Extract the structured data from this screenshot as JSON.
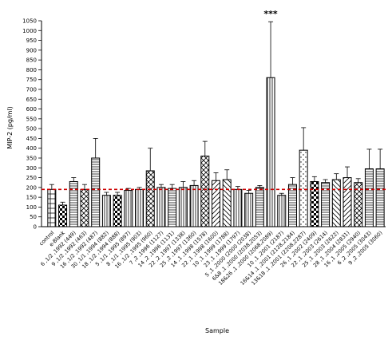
{
  "chart_data": {
    "type": "bar",
    "ylabel": "MIP-2 (pg/ml)",
    "xlabel": "Sample",
    "ylim": [
      0,
      1050
    ],
    "yticks": [
      0,
      50,
      100,
      150,
      200,
      250,
      300,
      350,
      400,
      450,
      500,
      550,
      600,
      650,
      700,
      750,
      800,
      850,
      900,
      950,
      1000,
      1050
    ],
    "categories": [
      "control",
      "e-Blank",
      "6 ,1/2 ,1992 (449)",
      "9 ,1/2 ,1992 (463)",
      "16 ,1/2 ,1992 (487)",
      "30 ,1/1 ,1994 (882)",
      "18 ,1/2 ,1994 (888)",
      "5 ,1/1 ,1995 (897)",
      "8 ,1/1 ,1995 (903)",
      "16 ,1/2 ,1995 (960)",
      "7 ,2 ,1996 (1127)",
      "14 ,2 ,1996 (1131)",
      "22 ,2 ,1997 (1338)",
      "25 ,2 ,1997 (1360)",
      "14 ,1 ,1998 (1578)",
      "22 ,1 ,1998 (1600)",
      "10 ,1 ,1999 (1788)",
      "23 ,1 ,1999 (1797)",
      "5 ,1 ,2000 (2000 (2038)",
      "6&8 ,1 ,2000 (2038,2053)",
      "18&26 ,1 ,2000 (2068,2089)",
      "10 ,1 ,2001 (2187)",
      "16&14 ,1 ,2001 (2128,2184)",
      "13&18 ,1 ,2001 (2208,2287)",
      "26 ,1 ,2002 (2409)",
      "22 ,1 ,2003 (2614)",
      "25 ,1 ,2003 (2622)",
      "28 ,1 ,2004 (2831)",
      "16 ,1 ,2005 (2940)",
      "6 ,2 ,2005 (3043)",
      "9 ,2 ,2005 (3060)"
    ],
    "values": [
      190,
      110,
      230,
      190,
      350,
      160,
      160,
      185,
      190,
      285,
      200,
      195,
      200,
      210,
      360,
      235,
      240,
      190,
      170,
      200,
      760,
      160,
      215,
      390,
      230,
      225,
      240,
      250,
      225,
      295,
      295
    ],
    "errors": [
      25,
      15,
      20,
      25,
      100,
      15,
      15,
      10,
      10,
      115,
      15,
      20,
      30,
      25,
      75,
      40,
      50,
      15,
      15,
      10,
      285,
      10,
      35,
      115,
      25,
      15,
      30,
      55,
      20,
      100,
      100
    ],
    "significance": {
      "label": "***",
      "category_index": 20
    },
    "reference_line": {
      "value": 190,
      "color": "#cc0000",
      "style": "dashed"
    },
    "grid": false,
    "legend": "none"
  }
}
